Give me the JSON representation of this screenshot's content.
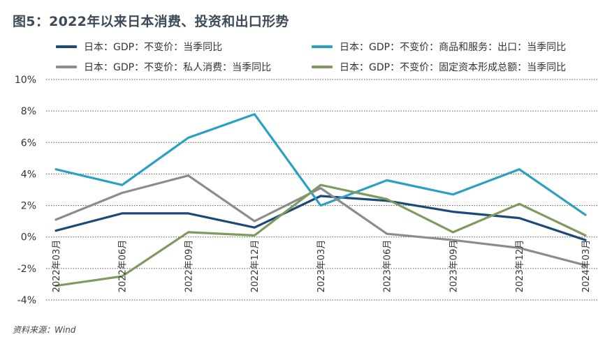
{
  "chart_data": {
    "type": "line",
    "title": "图5：2022年以来日本消费、投资和出口形势",
    "categories": [
      "2022年03月",
      "2022年06月",
      "2022年09月",
      "2022年12月",
      "2023年03月",
      "2023年06月",
      "2023年09月",
      "2023年12月",
      "2024年03月"
    ],
    "ylim": [
      -4,
      10
    ],
    "yticks": [
      10,
      8,
      6,
      4,
      2,
      0,
      -2,
      -4
    ],
    "ytick_labels": [
      "10%",
      "8%",
      "6%",
      "4%",
      "2%",
      "0%",
      "-2%",
      "-4%"
    ],
    "xlabel": "",
    "ylabel": "",
    "grid": "horizontal dotted",
    "series": [
      {
        "name": "日本：GDP：不变价：当季同比",
        "color": "#1b4a7a",
        "values": [
          0.4,
          1.5,
          1.5,
          0.6,
          2.6,
          2.3,
          1.6,
          1.2,
          -0.2
        ]
      },
      {
        "name": "日本：GDP：不变价：商品和服务：出口：当季同比",
        "color": "#2aa0c4",
        "values": [
          4.3,
          3.3,
          6.3,
          7.8,
          2.0,
          3.6,
          2.7,
          4.3,
          1.4
        ]
      },
      {
        "name": "日本：GDP：不变价：私人消费：当季同比",
        "color": "#8c8c8c",
        "values": [
          1.1,
          2.8,
          3.9,
          1.0,
          3.1,
          0.2,
          -0.2,
          -0.7,
          -1.8
        ]
      },
      {
        "name": "日本：GDP：不变价：固定资本形成总额：当季同比",
        "color": "#7f9a5e",
        "values": [
          -3.1,
          -2.5,
          0.3,
          0.1,
          3.3,
          2.4,
          0.3,
          2.1,
          0.1
        ]
      }
    ]
  },
  "source": "资料来源：Wind"
}
